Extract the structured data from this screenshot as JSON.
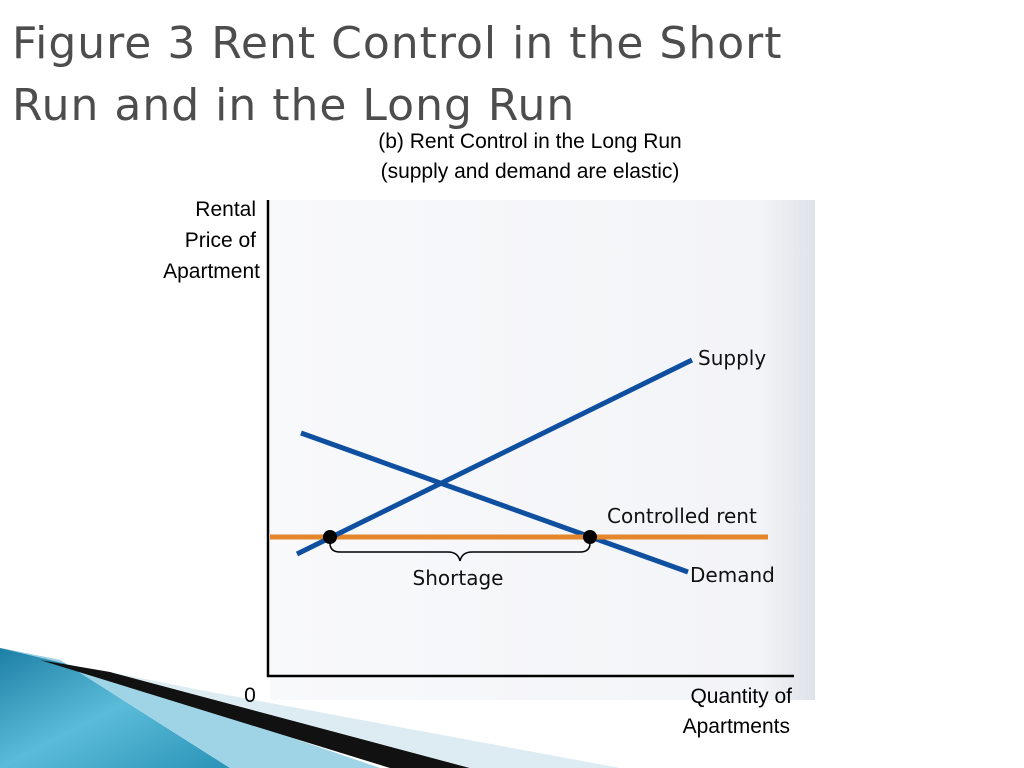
{
  "header": {
    "title_lines": [
      "Figure 3 Rent Control in the Short",
      "Run and in the Long Run"
    ]
  },
  "panel": {
    "title_lines": [
      "(b) Rent Control in the Long Run",
      "(supply and demand are elastic)"
    ]
  },
  "axes": {
    "y_label_lines": [
      "Rental",
      "Price of",
      "Apartment"
    ],
    "x_label_lines": [
      "Quantity of",
      "Apartments"
    ],
    "origin": "0"
  },
  "curves": {
    "supply": "Supply",
    "demand": "Demand",
    "controlled_rent": "Controlled rent"
  },
  "annotations": {
    "shortage": "Shortage"
  }
}
